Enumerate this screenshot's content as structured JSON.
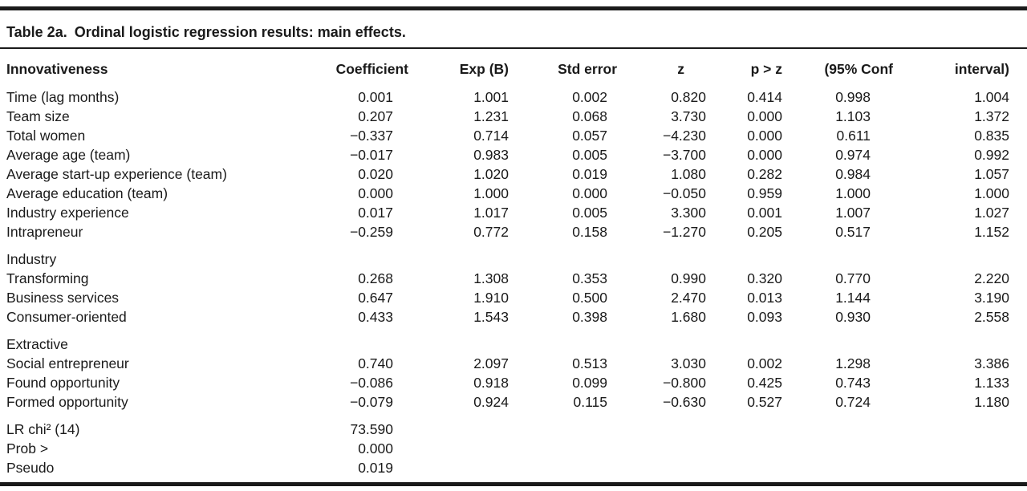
{
  "colors": {
    "background": "#ffffff",
    "text": "#1a1a1a",
    "rule": "#1a1a1a"
  },
  "table": {
    "title_label": "Table 2a.",
    "title_text": "Ordinal logistic regression results: main effects.",
    "columns": [
      "Innovativeness",
      "Coefficient",
      "Exp (B)",
      "Std error",
      "z",
      "p > z",
      "(95% Conf",
      "interval)"
    ],
    "groups": [
      {
        "header": null,
        "rows": [
          {
            "label": "Time (lag months)",
            "values": [
              "0.001",
              "1.001",
              "0.002",
              "0.820",
              "0.414",
              "0.998",
              "1.004"
            ]
          },
          {
            "label": "Team size",
            "values": [
              "0.207",
              "1.231",
              "0.068",
              "3.730",
              "0.000",
              "1.103",
              "1.372"
            ]
          },
          {
            "label": "Total women",
            "values": [
              "−0.337",
              "0.714",
              "0.057",
              "−4.230",
              "0.000",
              "0.611",
              "0.835"
            ]
          },
          {
            "label": "Average age (team)",
            "values": [
              "−0.017",
              "0.983",
              "0.005",
              "−3.700",
              "0.000",
              "0.974",
              "0.992"
            ]
          },
          {
            "label": "Average start-up experience (team)",
            "values": [
              "0.020",
              "1.020",
              "0.019",
              "1.080",
              "0.282",
              "0.984",
              "1.057"
            ]
          },
          {
            "label": "Average education (team)",
            "values": [
              "0.000",
              "1.000",
              "0.000",
              "−0.050",
              "0.959",
              "1.000",
              "1.000"
            ]
          },
          {
            "label": "Industry experience",
            "values": [
              "0.017",
              "1.017",
              "0.005",
              "3.300",
              "0.001",
              "1.007",
              "1.027"
            ]
          },
          {
            "label": "Intrapreneur",
            "values": [
              "−0.259",
              "0.772",
              "0.158",
              "−1.270",
              "0.205",
              "0.517",
              "1.152"
            ]
          }
        ]
      },
      {
        "header": "Industry",
        "rows": [
          {
            "label": "Transforming",
            "values": [
              "0.268",
              "1.308",
              "0.353",
              "0.990",
              "0.320",
              "0.770",
              "2.220"
            ]
          },
          {
            "label": "Business services",
            "values": [
              "0.647",
              "1.910",
              "0.500",
              "2.470",
              "0.013",
              "1.144",
              "3.190"
            ]
          },
          {
            "label": "Consumer-oriented",
            "values": [
              "0.433",
              "1.543",
              "0.398",
              "1.680",
              "0.093",
              "0.930",
              "2.558"
            ]
          }
        ]
      },
      {
        "header": "Extractive",
        "rows": [
          {
            "label": "Social entrepreneur",
            "values": [
              "0.740",
              "2.097",
              "0.513",
              "3.030",
              "0.002",
              "1.298",
              "3.386"
            ]
          },
          {
            "label": "Found opportunity",
            "values": [
              "−0.086",
              "0.918",
              "0.099",
              "−0.800",
              "0.425",
              "0.743",
              "1.133"
            ]
          },
          {
            "label": "Formed opportunity",
            "values": [
              "−0.079",
              "0.924",
              "0.115",
              "−0.630",
              "0.527",
              "0.724",
              "1.180"
            ]
          }
        ]
      },
      {
        "header": null,
        "rows": [
          {
            "label": "LR chi² (14)",
            "values": [
              "73.590",
              "",
              "",
              "",
              "",
              "",
              ""
            ]
          },
          {
            "label": "Prob >",
            "values": [
              "0.000",
              "",
              "",
              "",
              "",
              "",
              ""
            ]
          },
          {
            "label": "Pseudo",
            "values": [
              "0.019",
              "",
              "",
              "",
              "",
              "",
              ""
            ]
          }
        ]
      }
    ]
  }
}
